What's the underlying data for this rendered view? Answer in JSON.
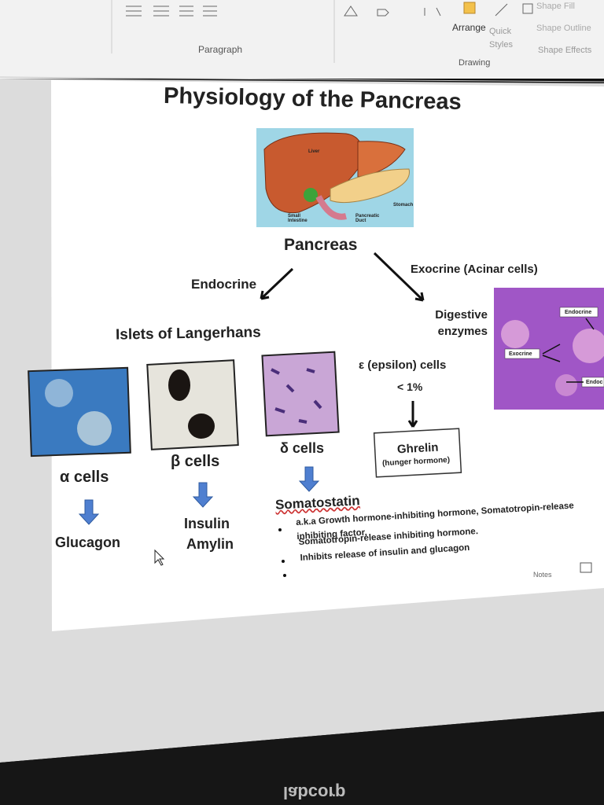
{
  "ribbon": {
    "groups": [
      "Paragraph",
      "Drawing"
    ],
    "arrange": "Arrange",
    "quick_styles": "Quick Styles",
    "shape_fill": "Shape Fill",
    "shape_outline": "Shape Outline",
    "shape_effects": "Shape Effects"
  },
  "slide": {
    "title": "Physiology of the Pancreas",
    "liver_labels": [
      "Liver",
      "Small Intestine",
      "Pancreatic Duct",
      "Stomach"
    ],
    "pancreas": "Pancreas",
    "endocrine": "Endocrine",
    "exocrine": "Exocrine (Acinar cells)",
    "islets": "Islets of Langerhans",
    "digestive_enzymes": "Digestive enzymes",
    "histology_labels": [
      "Endocrine",
      "Exocrine",
      "Endoc"
    ],
    "epsilon": {
      "name": "ε  (epsilon) cells",
      "share": "< 1%",
      "hormone": "Ghrelin",
      "note": "(hunger hormone)"
    },
    "alpha": {
      "name": "α cells",
      "hormones": [
        "Glucagon"
      ]
    },
    "beta": {
      "name": "β cells",
      "hormones": [
        "Insulin",
        "Amylin"
      ]
    },
    "delta": {
      "name": "δ cells",
      "hormones": [
        "Somatostatin"
      ],
      "facts": [
        "a.k.a Growth hormone-inhibiting hormone, Somatotropin-release inhibiting factor,",
        "Somatotropin-release inhibiting hormone.",
        "Inhibits release of insulin and glucagon"
      ]
    }
  },
  "status_bar": {
    "notes": "Notes"
  },
  "bezel": {
    "brand": "labcorp"
  }
}
